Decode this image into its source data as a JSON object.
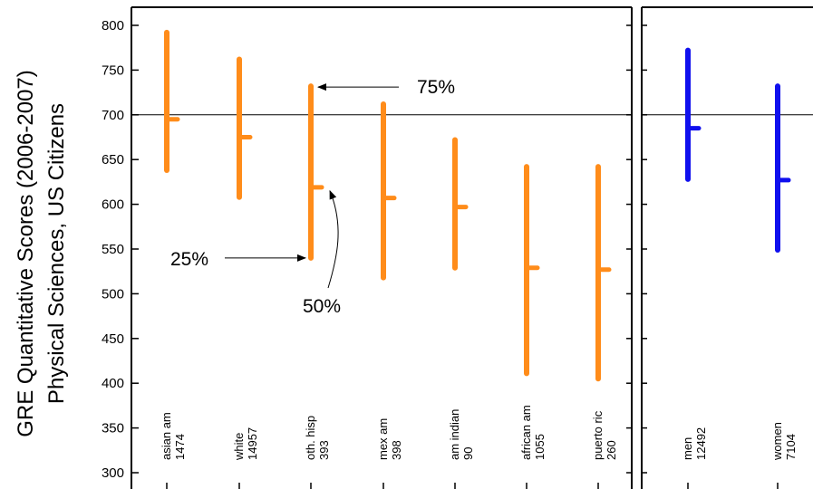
{
  "chart_data": {
    "type": "range",
    "ylabel_line1": "GRE Quantitative Scores (2006-2007)",
    "ylabel_line2": "Physical Sciences, US Citizens",
    "ylim": [
      300,
      800
    ],
    "yticks": [
      300,
      350,
      400,
      450,
      500,
      550,
      600,
      650,
      700,
      750,
      800
    ],
    "reference_line": 700,
    "panels": [
      {
        "name": "ethnicity",
        "color": "#ff8c1a",
        "groups": [
          {
            "label": "asian am",
            "count": "1474",
            "p25": 638,
            "p50": 695,
            "p75": 792
          },
          {
            "label": "white",
            "count": "14957",
            "p25": 608,
            "p50": 675,
            "p75": 762
          },
          {
            "label": "oth. hisp",
            "count": "393",
            "p25": 540,
            "p50": 619,
            "p75": 732
          },
          {
            "label": "mex am",
            "count": "398",
            "p25": 518,
            "p50": 607,
            "p75": 712
          },
          {
            "label": "am indian",
            "count": "90",
            "p25": 529,
            "p50": 597,
            "p75": 672
          },
          {
            "label": "african am",
            "count": "1055",
            "p25": 411,
            "p50": 529,
            "p75": 642
          },
          {
            "label": "puerto ric",
            "count": "260",
            "p25": 405,
            "p50": 527,
            "p75": 642
          }
        ]
      },
      {
        "name": "gender",
        "color": "#1010ee",
        "groups": [
          {
            "label": "men",
            "count": "12492",
            "p25": 628,
            "p50": 685,
            "p75": 772
          },
          {
            "label": "women",
            "count": "7104",
            "p25": 549,
            "p50": 627,
            "p75": 732
          }
        ]
      }
    ],
    "annotations": [
      {
        "text": "75%",
        "points_to": "p75",
        "group": "oth. hisp"
      },
      {
        "text": "25%",
        "points_to": "p25",
        "group": "oth. hisp"
      },
      {
        "text": "50%",
        "points_to": "p50",
        "group": "oth. hisp"
      }
    ]
  }
}
